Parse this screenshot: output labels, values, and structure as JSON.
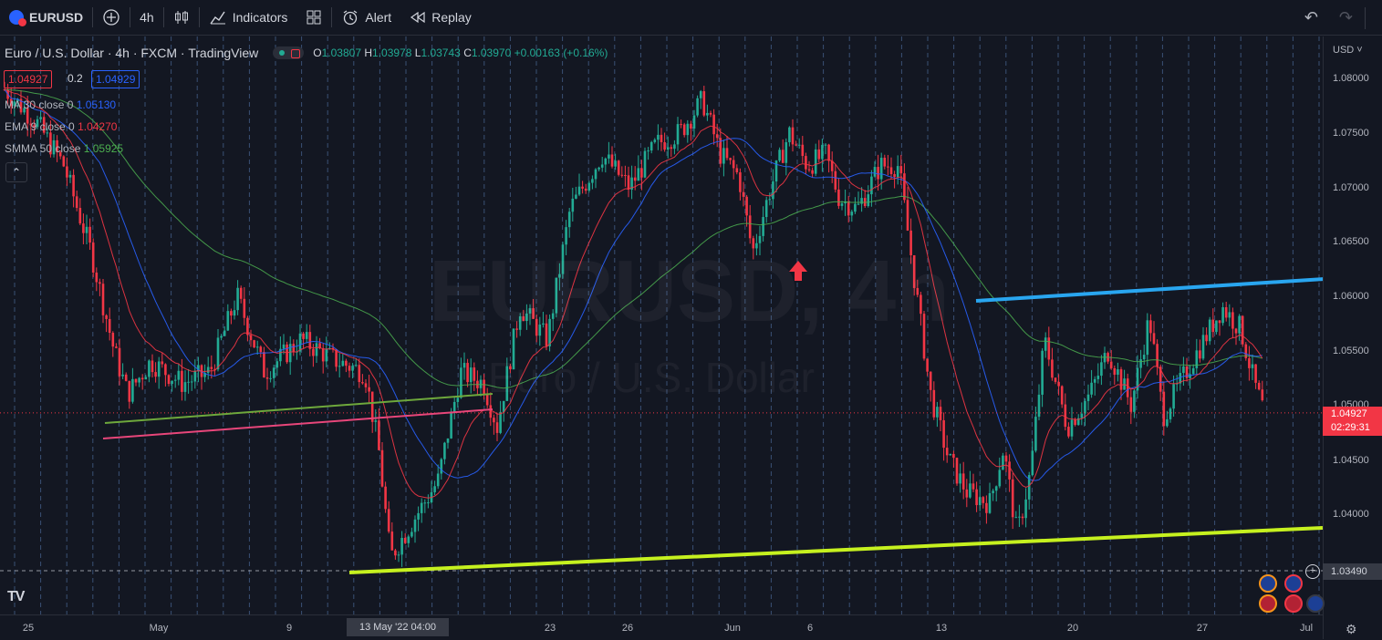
{
  "toolbar": {
    "symbol": "EURUSD",
    "add_symbol": "+",
    "interval": "4h",
    "indicators_label": "Indicators",
    "templates_icon": "templates-icon",
    "alert_label": "Alert",
    "replay_label": "Replay",
    "undo_icon": "undo-icon",
    "redo_icon": "redo-icon"
  },
  "legend": {
    "title": "Euro / U.S. Dollar · 4h · FXCM · TradingView",
    "open_label": "O",
    "open": "1.03807",
    "high_label": "H",
    "high": "1.03978",
    "low_label": "L",
    "low": "1.03743",
    "close_label": "C",
    "close": "1.03970",
    "change": "+0.00163 (+0.16%)",
    "bid": "1.04927",
    "spread": "0.2",
    "ask": "1.04929"
  },
  "indicators": [
    {
      "label": "MA 30 close 0",
      "value": "1.05130",
      "color": "#2962ff"
    },
    {
      "label": "EMA 9 close 0",
      "value": "1.04270",
      "color": "#f23645"
    },
    {
      "label": "SMMA 50 close",
      "value": "1.05925",
      "color": "#4caf50"
    }
  ],
  "watermark": {
    "main": "EURUSD, 4h",
    "sub": "Euro / U.S. Dollar"
  },
  "price_axis": {
    "currency": "USD",
    "ticks": [
      "1.08000",
      "1.07500",
      "1.07000",
      "1.06500",
      "1.06000",
      "1.05500",
      "1.05000",
      "1.04500",
      "1.04000"
    ],
    "last_price": "1.04927",
    "countdown": "02:29:31",
    "crosshair_price": "1.03490"
  },
  "time_axis": {
    "ticks": [
      "25",
      "May",
      "9",
      "23",
      "26",
      "Jun",
      "6",
      "13",
      "20",
      "27",
      "Jul"
    ],
    "crosshair_time": "13 May '22   04:00"
  },
  "colors": {
    "up": "#22ab94",
    "down": "#f23645",
    "blue_line": "#29a6f0",
    "lime_line": "#c6f11f",
    "green_line": "#6ea83c",
    "pink_line": "#e8467a",
    "arrow": "#f23645"
  }
}
